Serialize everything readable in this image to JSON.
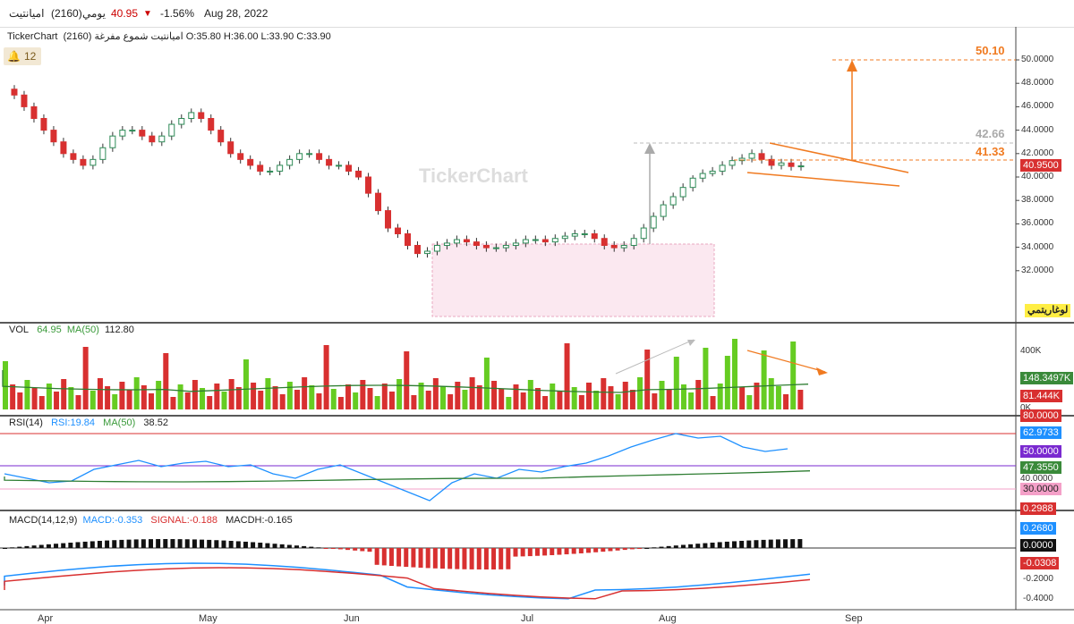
{
  "header": {
    "name": "اميانتيت",
    "code": "(2160)",
    "period": "يومي",
    "price": "40.95",
    "change_pct": "-1.56%",
    "date": "Aug 28, 2022",
    "down_color": "#cc0000"
  },
  "chart": {
    "info_line": "TickerChart",
    "info_name": "اميانتيت  شموع مفرغة (2160) O:35.80  H:36.00  L:33.90  C:33.90",
    "alerts_count": "12",
    "bell_icon": "bell-icon",
    "watermark": "TickerChart",
    "log_label": "لوغاريتمي",
    "target_label": "50.10",
    "level_1": "42.66",
    "level_2": "41.33",
    "last_price_label": "40.9500",
    "price_ticks": [
      "50.0000",
      "48.0000",
      "46.0000",
      "44.0000",
      "42.0000",
      "40.0000",
      "38.0000",
      "36.0000",
      "34.0000",
      "32.0000"
    ],
    "months": [
      "Apr",
      "May",
      "Jun",
      "Jul",
      "Aug",
      "Sep"
    ],
    "colors": {
      "up": "#2e8b57",
      "down": "#d83030",
      "volup": "#66cc22",
      "target": "#f07a20"
    }
  },
  "volume": {
    "title": "VOL",
    "value": "64.95",
    "ma_label": "MA(50)",
    "ma_value": "112.80",
    "tick_400k": "400K",
    "tick_0k": "0K",
    "ma_badge": "148.3497K",
    "vol_badge": "81.444K"
  },
  "rsi": {
    "title": "RSI(14)",
    "value_label": "RSI:19.84",
    "ma_label": "MA(50)",
    "ma_value": "38.52",
    "badge_80": "80.0000",
    "badge_rsi": "62.9733",
    "badge_50": "50.0000",
    "badge_ma": "47.3550",
    "tick_40": "40.0000",
    "badge_30": "30.0000",
    "badge_low": "0.2988"
  },
  "macd": {
    "title": "MACD(14,12,9)",
    "macd_label": "MACD:-0.353",
    "signal_label": "SIGNAL:-0.188",
    "hist_label": "MACDH:-0.165",
    "badge_macd": "0.2680",
    "badge_zero": "0.0000",
    "badge_hist": "-0.0308",
    "tick_m02": "-0.2000",
    "tick_m04": "-0.4000"
  }
}
